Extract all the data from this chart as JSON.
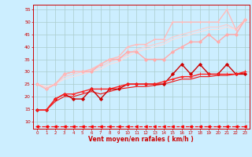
{
  "xlabel": "Vent moyen/en rafales ( km/h )",
  "bg_color": "#cceeff",
  "grid_color": "#aacccc",
  "xlim": [
    -0.5,
    23.5
  ],
  "ylim": [
    7,
    57
  ],
  "yticks": [
    10,
    15,
    20,
    25,
    30,
    35,
    40,
    45,
    50,
    55
  ],
  "xticks": [
    0,
    1,
    2,
    3,
    4,
    5,
    6,
    7,
    8,
    9,
    10,
    11,
    12,
    13,
    14,
    15,
    16,
    17,
    18,
    19,
    20,
    21,
    22,
    23
  ],
  "lines": [
    {
      "x": [
        0,
        1,
        2,
        3,
        4,
        5,
        6,
        7,
        8,
        9,
        10,
        11,
        12,
        13,
        14,
        15,
        16,
        17,
        18,
        19,
        20,
        21,
        22,
        23
      ],
      "y": [
        14.5,
        14.5,
        19,
        21,
        19,
        19,
        23,
        19,
        23,
        23,
        25,
        25,
        25,
        25,
        25,
        29,
        33,
        29,
        33,
        29,
        29,
        33,
        29,
        29
      ],
      "color": "#cc0000",
      "lw": 1.0,
      "marker": "D",
      "ms": 2.0,
      "ls": "-",
      "zorder": 4
    },
    {
      "x": [
        0,
        1,
        2,
        3,
        4,
        5,
        6,
        7,
        8,
        9,
        10,
        11,
        12,
        13,
        14,
        15,
        16,
        17,
        18,
        19,
        20,
        21,
        22,
        23
      ],
      "y": [
        14.5,
        14.5,
        19,
        21,
        21,
        22,
        23,
        23,
        23,
        24,
        25,
        25,
        25,
        25,
        26,
        27,
        28,
        28,
        29,
        29,
        29,
        29,
        29,
        30
      ],
      "color": "#ff2222",
      "lw": 1.0,
      "marker": "+",
      "ms": 3.0,
      "ls": "-",
      "zorder": 4
    },
    {
      "x": [
        0,
        1,
        2,
        3,
        4,
        5,
        6,
        7,
        8,
        9,
        10,
        11,
        12,
        13,
        14,
        15,
        16,
        17,
        18,
        19,
        20,
        21,
        22,
        23
      ],
      "y": [
        14.5,
        14.5,
        18,
        20,
        20,
        21,
        22,
        21,
        22,
        23,
        23.5,
        24,
        24,
        24.5,
        25,
        26,
        27,
        27,
        28,
        28,
        28.5,
        28.5,
        29,
        29.5
      ],
      "color": "#ee1111",
      "lw": 0.8,
      "marker": null,
      "ms": 0,
      "ls": "-",
      "zorder": 3
    },
    {
      "x": [
        0,
        1,
        2,
        3,
        4,
        5,
        6,
        7,
        8,
        9,
        10,
        11,
        12,
        13,
        14,
        15,
        16,
        17,
        18,
        19,
        20,
        21,
        22,
        23
      ],
      "y": [
        25,
        23,
        25,
        29,
        30,
        30,
        30,
        33,
        35,
        35,
        38,
        38,
        35,
        35,
        35,
        38,
        40,
        42,
        42,
        45,
        42,
        45,
        45,
        51
      ],
      "color": "#ffaaaa",
      "lw": 1.0,
      "marker": "D",
      "ms": 2.0,
      "ls": "-",
      "zorder": 4
    },
    {
      "x": [
        0,
        1,
        2,
        3,
        4,
        5,
        6,
        7,
        8,
        9,
        10,
        11,
        12,
        13,
        14,
        15,
        16,
        17,
        18,
        19,
        20,
        21,
        22,
        23
      ],
      "y": [
        25,
        23,
        25,
        29,
        30,
        30,
        31,
        33,
        35,
        36,
        40,
        41,
        41,
        43,
        43,
        50,
        50,
        50,
        50,
        50,
        50,
        55,
        47,
        51
      ],
      "color": "#ffbbbb",
      "lw": 1.0,
      "marker": "+",
      "ms": 3.0,
      "ls": "-",
      "zorder": 4
    },
    {
      "x": [
        0,
        1,
        2,
        3,
        4,
        5,
        6,
        7,
        8,
        9,
        10,
        11,
        12,
        13,
        14,
        15,
        16,
        17,
        18,
        19,
        20,
        21,
        22,
        23
      ],
      "y": [
        25,
        24,
        25,
        28,
        29,
        30,
        31,
        32,
        34,
        35,
        37,
        39,
        40,
        41,
        42,
        44,
        45,
        46,
        47,
        48,
        48,
        49,
        47,
        51
      ],
      "color": "#ffcccc",
      "lw": 0.8,
      "marker": null,
      "ms": 0,
      "ls": "-",
      "zorder": 3
    },
    {
      "x": [
        0,
        1,
        2,
        3,
        4,
        5,
        6,
        7,
        8,
        9,
        10,
        11,
        12,
        13,
        14,
        15,
        16,
        17,
        18,
        19,
        20,
        21,
        22,
        23
      ],
      "y": [
        25,
        24,
        25,
        27,
        28,
        29,
        30,
        31,
        33,
        34,
        36,
        38,
        39,
        40,
        41,
        43,
        44,
        45,
        46,
        47,
        47,
        48,
        47,
        50
      ],
      "color": "#ffdddd",
      "lw": 0.8,
      "marker": null,
      "ms": 0,
      "ls": "-",
      "zorder": 3
    },
    {
      "x": [
        0,
        1,
        2,
        3,
        4,
        5,
        6,
        7,
        8,
        9,
        10,
        11,
        12,
        13,
        14,
        15,
        16,
        17,
        18,
        19,
        20,
        21,
        22,
        23
      ],
      "y": [
        8,
        8,
        8,
        8,
        8,
        8,
        8,
        8,
        8,
        8,
        8,
        8,
        8,
        8,
        8,
        8,
        8,
        8,
        8,
        8,
        8,
        8,
        8,
        8
      ],
      "color": "#ff0000",
      "lw": 0.8,
      "marker": "<",
      "ms": 2.5,
      "ls": "--",
      "zorder": 4
    }
  ]
}
